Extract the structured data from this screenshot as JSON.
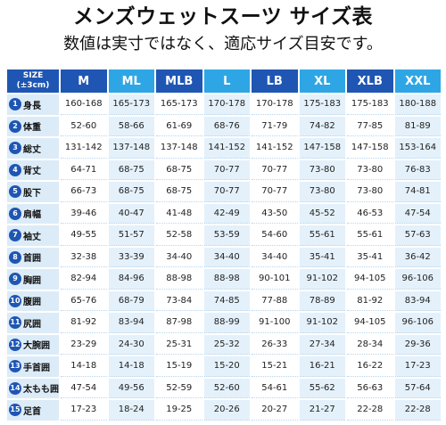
{
  "header": {
    "title": "メンズウェットスーツ サイズ表",
    "subtitle": "数値は実寸ではなく、適応サイズ目安です。"
  },
  "table": {
    "corner_line1": "SIZE",
    "corner_line2": "(±3cm)",
    "sizes": [
      "M",
      "ML",
      "MLB",
      "L",
      "LB",
      "XL",
      "XLB",
      "XXL"
    ],
    "rows": [
      {
        "num": "1",
        "label": "身長",
        "values": [
          "160-168",
          "165-173",
          "165-173",
          "170-178",
          "170-178",
          "175-183",
          "175-183",
          "180-188"
        ]
      },
      {
        "num": "2",
        "label": "体重",
        "values": [
          "52-60",
          "58-66",
          "61-69",
          "68-76",
          "71-79",
          "74-82",
          "77-85",
          "81-89"
        ]
      },
      {
        "num": "3",
        "label": "総丈",
        "values": [
          "131-142",
          "137-148",
          "137-148",
          "141-152",
          "141-152",
          "147-158",
          "147-158",
          "153-164"
        ]
      },
      {
        "num": "4",
        "label": "背丈",
        "values": [
          "64-71",
          "68-75",
          "68-75",
          "70-77",
          "70-77",
          "73-80",
          "73-80",
          "76-83"
        ]
      },
      {
        "num": "5",
        "label": "股下",
        "values": [
          "66-73",
          "68-75",
          "68-75",
          "70-77",
          "70-77",
          "73-80",
          "73-80",
          "74-81"
        ]
      },
      {
        "num": "6",
        "label": "肩幅",
        "values": [
          "39-46",
          "40-47",
          "41-48",
          "42-49",
          "43-50",
          "45-52",
          "46-53",
          "47-54"
        ]
      },
      {
        "num": "7",
        "label": "袖丈",
        "values": [
          "49-55",
          "51-57",
          "52-58",
          "53-59",
          "54-60",
          "55-61",
          "55-61",
          "57-63"
        ]
      },
      {
        "num": "8",
        "label": "首囲",
        "values": [
          "32-38",
          "33-39",
          "34-40",
          "34-40",
          "34-40",
          "35-41",
          "35-41",
          "36-42"
        ]
      },
      {
        "num": "9",
        "label": "胸囲",
        "values": [
          "82-94",
          "84-96",
          "88-98",
          "88-98",
          "90-101",
          "91-102",
          "94-105",
          "96-106"
        ]
      },
      {
        "num": "10",
        "label": "腹囲",
        "values": [
          "65-76",
          "68-79",
          "73-84",
          "74-85",
          "77-88",
          "78-89",
          "81-92",
          "83-94"
        ]
      },
      {
        "num": "11",
        "label": "尻囲",
        "values": [
          "81-92",
          "83-94",
          "87-98",
          "88-99",
          "91-100",
          "91-102",
          "94-105",
          "96-106"
        ]
      },
      {
        "num": "12",
        "label": "大腕囲",
        "values": [
          "23-29",
          "24-30",
          "25-31",
          "25-32",
          "26-33",
          "27-34",
          "28-34",
          "29-36"
        ]
      },
      {
        "num": "13",
        "label": "手首囲",
        "values": [
          "14-18",
          "14-18",
          "15-19",
          "15-20",
          "15-21",
          "16-21",
          "16-22",
          "17-23"
        ]
      },
      {
        "num": "14",
        "label": "太もも囲",
        "values": [
          "47-54",
          "49-56",
          "52-59",
          "52-60",
          "54-61",
          "55-62",
          "56-63",
          "57-64"
        ]
      },
      {
        "num": "15",
        "label": "足首",
        "values": [
          "17-23",
          "18-24",
          "19-25",
          "20-26",
          "20-27",
          "21-27",
          "22-28",
          "22-28"
        ]
      }
    ]
  },
  "colors": {
    "header_dark": "#1f56b3",
    "header_light": "#2ea6e5",
    "label_bg": "#dcebf8",
    "stripe": "#e4f1fb"
  }
}
